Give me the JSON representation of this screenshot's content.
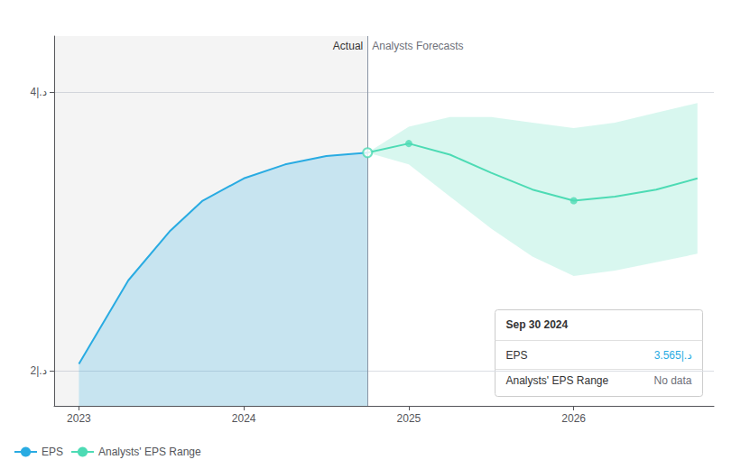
{
  "chart_data": {
    "type": "line",
    "xlim": [
      2022.85,
      2026.85
    ],
    "ylim": [
      1.75,
      4.4
    ],
    "xticks": [
      2023,
      2024,
      2025,
      2026
    ],
    "yticks": [
      {
        "value": 2.0,
        "label": "2|.د"
      },
      {
        "value": 4.0,
        "label": "4|.د"
      }
    ],
    "grid": true,
    "legend": "lower left",
    "divider_x": 2024.75,
    "region_labels": {
      "actual": "Actual",
      "forecast": "Analysts Forecasts"
    },
    "series": [
      {
        "name": "EPS",
        "color": "#29abe2",
        "x": [
          2023.0,
          2023.3,
          2023.55,
          2023.75,
          2024.0,
          2024.25,
          2024.5,
          2024.75
        ],
        "values": [
          2.05,
          2.65,
          3.0,
          3.22,
          3.38,
          3.48,
          3.54,
          3.565
        ],
        "fill_lower": [
          1.75,
          1.75,
          1.75,
          1.75,
          1.75,
          1.75,
          1.75,
          1.75
        ]
      },
      {
        "name": "Analysts' EPS Range",
        "color": "#4ddbb4",
        "x": [
          2024.75,
          2025.0,
          2025.25,
          2025.5,
          2025.75,
          2026.0,
          2026.25,
          2026.5,
          2026.75
        ],
        "values": [
          3.565,
          3.63,
          3.55,
          3.42,
          3.3,
          3.22,
          3.25,
          3.3,
          3.38
        ],
        "upper": [
          3.565,
          3.75,
          3.82,
          3.82,
          3.78,
          3.74,
          3.78,
          3.85,
          3.92
        ],
        "lower": [
          3.565,
          3.48,
          3.25,
          3.02,
          2.82,
          2.68,
          2.72,
          2.78,
          2.84
        ],
        "key_points": {
          "x": [
            2025.0,
            2026.0
          ],
          "y": [
            3.63,
            3.22
          ]
        },
        "start_point": {
          "x": 2024.75,
          "y": 3.565
        }
      }
    ],
    "tooltip": {
      "title": "Sep 30 2024",
      "rows": [
        {
          "label": "EPS",
          "value": "3.565|.د",
          "color": "#29abe2"
        },
        {
          "label": "Analysts' EPS Range",
          "value": "No data"
        }
      ]
    }
  }
}
